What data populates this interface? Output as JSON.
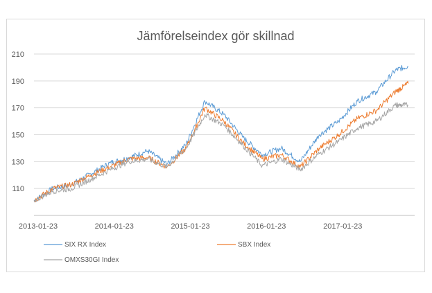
{
  "chart_data": {
    "type": "line",
    "title": "Jämförelseindex gör skillnad",
    "xlabel": "",
    "ylabel": "",
    "ylim": [
      90,
      210
    ],
    "yticks": [
      110,
      130,
      150,
      170,
      190,
      210
    ],
    "x_tick_labels": [
      "2013-01-23",
      "2014-01-23",
      "2015-01-23",
      "2016-01-23",
      "2017-01-23"
    ],
    "x_range": [
      "2013-01-23",
      "2018-01-23"
    ],
    "grid": "horizontal",
    "legend_position": "bottom",
    "x": [
      "2013-01-23",
      "2013-04-23",
      "2013-07-23",
      "2013-10-23",
      "2014-01-23",
      "2014-04-23",
      "2014-07-23",
      "2014-10-23",
      "2015-01-23",
      "2015-04-23",
      "2015-07-23",
      "2015-10-23",
      "2016-01-23",
      "2016-04-23",
      "2016-07-23",
      "2016-10-23",
      "2017-01-23",
      "2017-04-23",
      "2017-07-23",
      "2017-10-23",
      "2017-12-23"
    ],
    "series": [
      {
        "name": "SIX RX   Index",
        "color": "#5b9bd5",
        "values": [
          101,
          110,
          113,
          121,
          129,
          133,
          138,
          128,
          143,
          175,
          165,
          148,
          135,
          140,
          130,
          150,
          160,
          175,
          182,
          198,
          201
        ]
      },
      {
        "name": "SBX Index",
        "color": "#ed7d31",
        "values": [
          101,
          110,
          113,
          120,
          126,
          132,
          133,
          126,
          140,
          170,
          160,
          144,
          132,
          135,
          126,
          140,
          150,
          162,
          168,
          182,
          188
        ]
      },
      {
        "name": "OMXS30GI Index",
        "color": "#a5a5a5",
        "values": [
          101,
          108,
          110,
          117,
          124,
          130,
          132,
          126,
          140,
          165,
          157,
          142,
          127,
          132,
          124,
          136,
          145,
          155,
          160,
          172,
          172
        ]
      }
    ]
  }
}
